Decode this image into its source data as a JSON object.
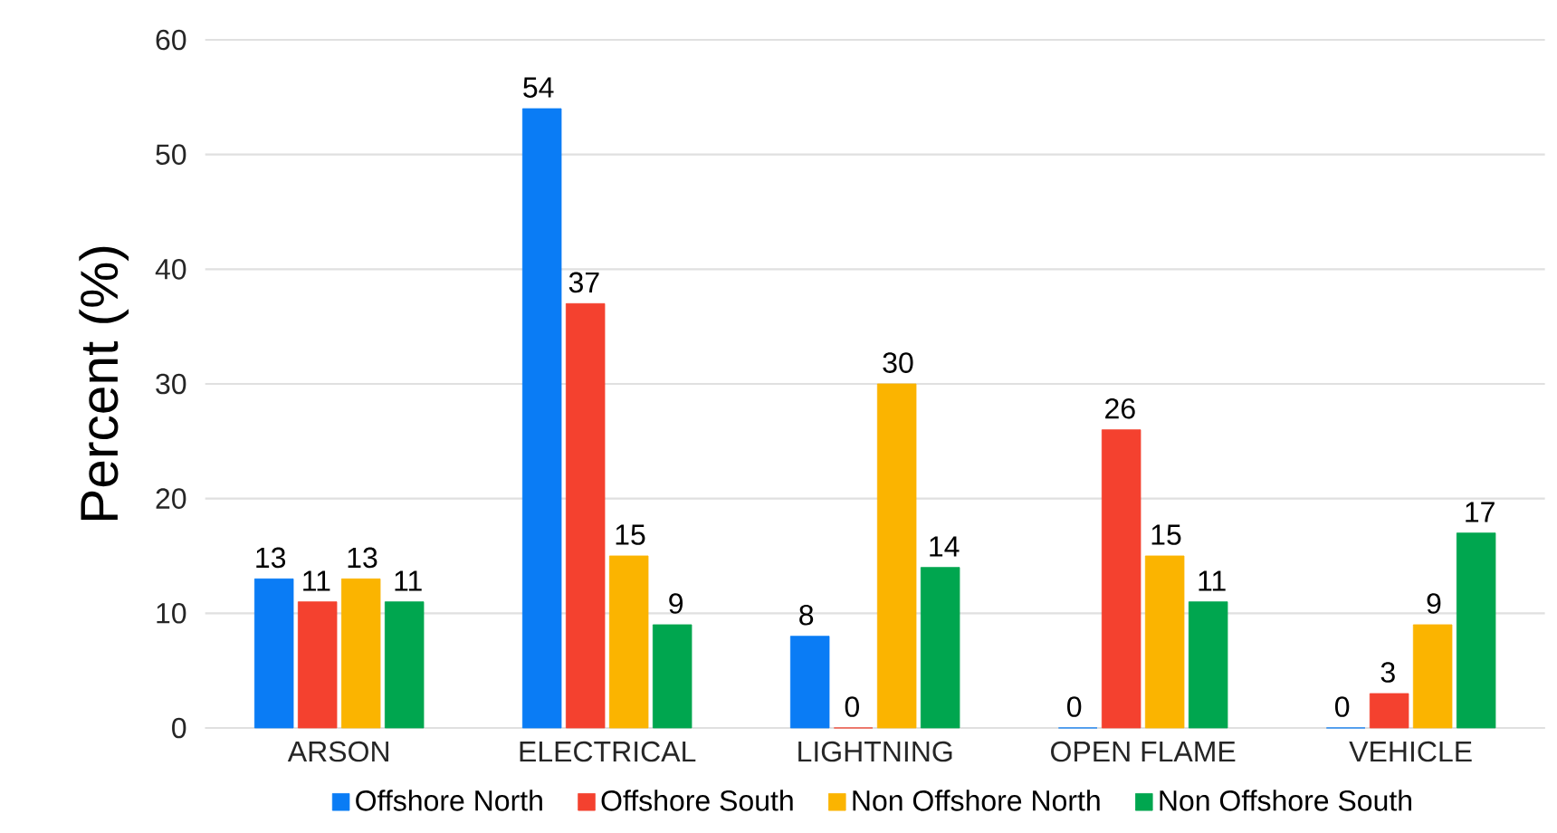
{
  "chart_data": {
    "type": "bar",
    "ylabel": "Percent (%)",
    "categories": [
      "ARSON",
      "ELECTRICAL",
      "LIGHTNING",
      "OPEN FLAME",
      "VEHICLE"
    ],
    "series": [
      {
        "name": "Offshore North",
        "color": "#0a7cf5",
        "values": [
          13,
          54,
          8,
          0,
          0
        ]
      },
      {
        "name": "Offshore South",
        "color": "#f4412f",
        "values": [
          11,
          37,
          0,
          26,
          3
        ]
      },
      {
        "name": "Non Offshore North",
        "color": "#fbb400",
        "values": [
          13,
          15,
          30,
          15,
          9
        ]
      },
      {
        "name": "Non Offshore South",
        "color": "#00a64f",
        "values": [
          11,
          9,
          14,
          11,
          17
        ]
      }
    ],
    "ylim": [
      0,
      60
    ],
    "yticks": [
      0,
      10,
      20,
      30,
      40,
      50,
      60
    ],
    "grid": "y",
    "legend": "bottom",
    "data_labels": true
  }
}
